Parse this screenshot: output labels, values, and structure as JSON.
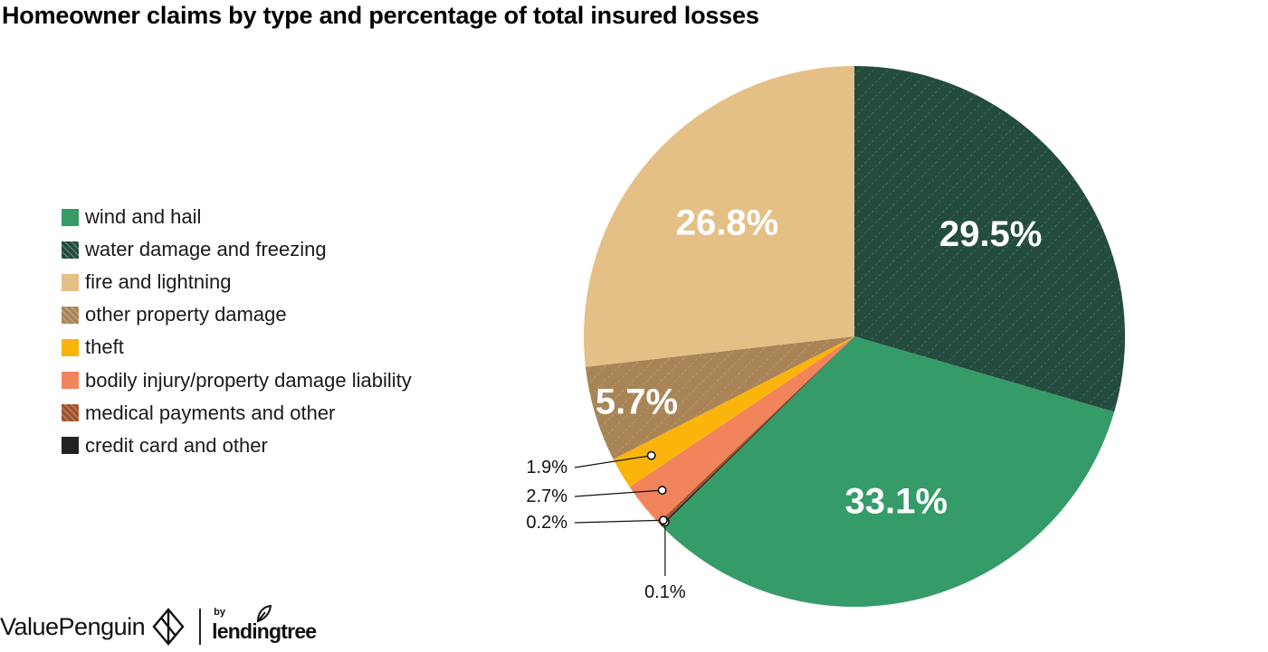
{
  "chart_data": {
    "type": "pie",
    "title": "Homeowner claims by type and percentage of total insured losses",
    "start_angle_deg": 0,
    "direction": "clockwise",
    "slices": [
      {
        "label": "water damage and freezing",
        "value": 29.5,
        "display": "29.5%",
        "color": "#234b3e",
        "pattern": "diagonal-dashed"
      },
      {
        "label": "wind and hail",
        "value": 33.1,
        "display": "33.1%",
        "color": "#359b68"
      },
      {
        "label": "credit card and other",
        "value": 0.1,
        "display": "0.1%",
        "color": "#222222"
      },
      {
        "label": "medical payments and other",
        "value": 0.2,
        "display": "0.2%",
        "color": "#a0522d",
        "pattern": "diagonal-dashed"
      },
      {
        "label": "bodily injury/property damage liability",
        "value": 2.7,
        "display": "2.7%",
        "color": "#f2845c"
      },
      {
        "label": "theft",
        "value": 1.9,
        "display": "1.9%",
        "color": "#fbb40b"
      },
      {
        "label": "other property damage",
        "value": 5.7,
        "display": "5.7%",
        "color": "#a88456",
        "pattern": "diagonal-dashed"
      },
      {
        "label": "fire and lightning",
        "value": 26.8,
        "display": "26.8%",
        "color": "#e4c086"
      }
    ],
    "legend_order": [
      "wind and hail",
      "water damage and freezing",
      "fire and lightning",
      "other property damage",
      "theft",
      "bodily injury/property damage liability",
      "medical payments and other",
      "credit card and other"
    ],
    "legend_placement": "left",
    "inside_labels": [
      "29.5%",
      "33.1%",
      "5.7%",
      "26.8%"
    ],
    "callout_labels": [
      "1.9%",
      "2.7%",
      "0.2%",
      "0.1%"
    ]
  },
  "footer": {
    "brand": "ValuePenguin",
    "partner_by": "by",
    "partner": "lendingtree"
  }
}
